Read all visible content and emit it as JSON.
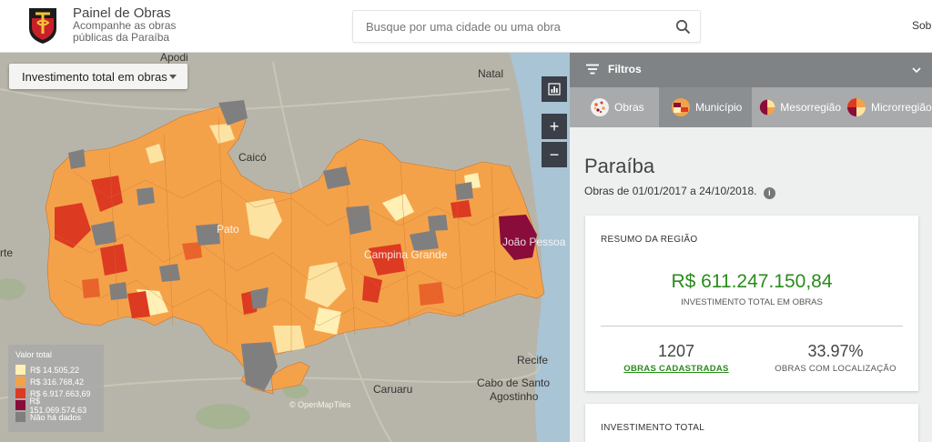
{
  "header": {
    "title": "Painel de Obras",
    "subtitle": "Acompanhe as obras públicas da Paraíba",
    "search_placeholder": "Busque por uma cidade ou uma obra",
    "right_link": "Sobr"
  },
  "map": {
    "layer_select": "Investimento total em obras",
    "chart_button": "bar-chart-icon",
    "zoom_in": "+",
    "zoom_out": "−",
    "attribution": "© OpenMapTiles",
    "labels": {
      "apodi": "Apodi",
      "natal": "Natal",
      "caico": "Caicó",
      "patos": "Pato",
      "joao_pessoa": "João Pessoa",
      "campina_grande": "Campina Grande",
      "recife": "Recife",
      "caruaru": "Caruaru",
      "cabo": "Cabo de Santo",
      "agostinho": "Agostinho",
      "rte": "rte"
    },
    "legend": {
      "title": "Valor total",
      "items": [
        {
          "label": "R$ 14.505,22",
          "color": "#fff0b5"
        },
        {
          "label": "R$ 316.768,42",
          "color": "#f4a24a"
        },
        {
          "label": "R$ 6.917.663,69",
          "color": "#dd3a22"
        },
        {
          "label": "R$ 151.069.574,63",
          "color": "#8a0c3a"
        },
        {
          "label": "Não há dados",
          "color": "#7f7f80"
        }
      ]
    }
  },
  "panel": {
    "filters_label": "Filtros",
    "tabs": [
      {
        "label": "Obras",
        "icon": "works-icon",
        "active": false
      },
      {
        "label": "Município",
        "icon": "municipality-icon",
        "active": true
      },
      {
        "label": "Mesorregião",
        "icon": "mesoregion-icon",
        "active": false
      },
      {
        "label": "Microrregião",
        "icon": "microregion-icon",
        "active": false
      }
    ],
    "region_name": "Paraíba",
    "period": "Obras de 01/01/2017 a 24/10/2018.",
    "summary": {
      "heading": "RESUMO DA REGIÃO",
      "total_value": "R$ 611.247.150,84",
      "total_label": "INVESTIMENTO TOTAL EM OBRAS",
      "works_count": "1207",
      "works_label": "OBRAS CADASTRADAS",
      "location_pct": "33.97%",
      "location_label": "OBRAS COM LOCALIZAÇÃO"
    },
    "investment_heading": "INVESTIMENTO TOTAL"
  },
  "colors": {
    "accent_green": "#2a8b1c",
    "very_low": "#fff0b5",
    "low": "#f4a24a",
    "high": "#dd3a22",
    "very_high": "#8a0c3a",
    "no_data": "#7f7f80"
  }
}
